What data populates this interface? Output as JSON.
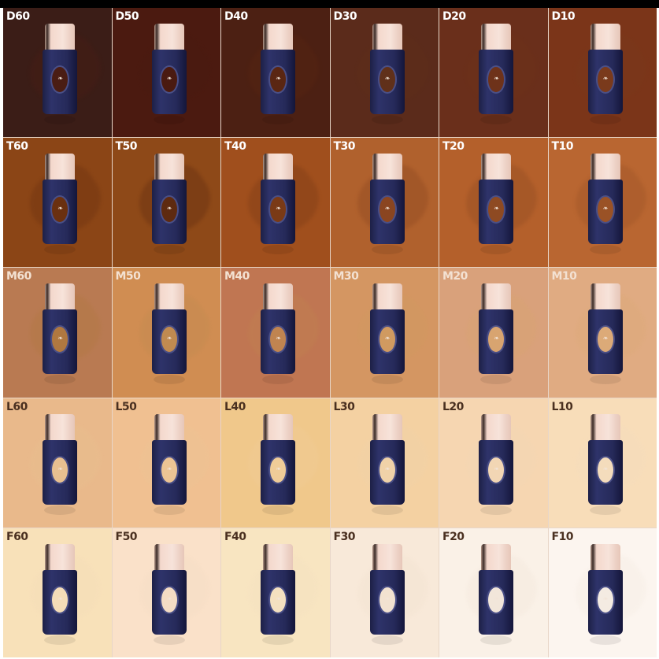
{
  "shades": [
    {
      "name": "D60",
      "bg": "#3b1d17",
      "ink": "#ffffff",
      "product": "#4a1d14"
    },
    {
      "name": "D50",
      "bg": "#4b1a10",
      "ink": "#ffffff",
      "product": "#4a1a10"
    },
    {
      "name": "D40",
      "bg": "#4c2013",
      "ink": "#ffffff",
      "product": "#5a2612"
    },
    {
      "name": "D30",
      "bg": "#5b2b1b",
      "ink": "#ffffff",
      "product": "#60301a"
    },
    {
      "name": "D20",
      "bg": "#6a2f1b",
      "ink": "#ffffff",
      "product": "#6e321a"
    },
    {
      "name": "D10",
      "bg": "#7b3519",
      "ink": "#ffffff",
      "product": "#7a3a1c"
    },
    {
      "name": "T60",
      "bg": "#8b4516",
      "ink": "#ffffff",
      "product": "#6a3010"
    },
    {
      "name": "T50",
      "bg": "#8e4918",
      "ink": "#ffffff",
      "product": "#5e2a10"
    },
    {
      "name": "T40",
      "bg": "#a04f1d",
      "ink": "#ffffff",
      "product": "#7a3a16"
    },
    {
      "name": "T30",
      "bg": "#b0612d",
      "ink": "#ffffff",
      "product": "#8a4520"
    },
    {
      "name": "T20",
      "bg": "#b4602b",
      "ink": "#ffffff",
      "product": "#8e4a22"
    },
    {
      "name": "T10",
      "bg": "#b96631",
      "ink": "#ffffff",
      "product": "#9a5226"
    },
    {
      "name": "M60",
      "bg": "#b97a52",
      "ink": "#f3e1d2",
      "product": "#b07840"
    },
    {
      "name": "M50",
      "bg": "#d08d52",
      "ink": "#f3e1d2",
      "product": "#c08a50"
    },
    {
      "name": "M40",
      "bg": "#c07652",
      "ink": "#f3e1d2",
      "product": "#c08450"
    },
    {
      "name": "M30",
      "bg": "#d49662",
      "ink": "#f3e1d2",
      "product": "#d09a60"
    },
    {
      "name": "M20",
      "bg": "#d9a17b",
      "ink": "#f3e1d2",
      "product": "#d8a470"
    },
    {
      "name": "M10",
      "bg": "#e0ab82",
      "ink": "#f3e1d2",
      "product": "#dcaa78"
    },
    {
      "name": "L60",
      "bg": "#e9b98b",
      "ink": "#4a3020",
      "product": "#e8c090"
    },
    {
      "name": "L50",
      "bg": "#f0c091",
      "ink": "#4a3020",
      "product": "#ecc494"
    },
    {
      "name": "L40",
      "bg": "#f0c88b",
      "ink": "#4a3020",
      "product": "#f0cc98"
    },
    {
      "name": "L30",
      "bg": "#f4d1a2",
      "ink": "#4a3020",
      "product": "#f0d2a8"
    },
    {
      "name": "L20",
      "bg": "#f6d6b1",
      "ink": "#4a3020",
      "product": "#f2d6b4"
    },
    {
      "name": "L10",
      "bg": "#f8ddb9",
      "ink": "#4a3020",
      "product": "#f4dcbc"
    },
    {
      "name": "F60",
      "bg": "#f8e1b9",
      "ink": "#4a3020",
      "product": "#f4dcb8"
    },
    {
      "name": "F50",
      "bg": "#fae1c9",
      "ink": "#4a3020",
      "product": "#f4dcc4"
    },
    {
      "name": "F40",
      "bg": "#f8e5c1",
      "ink": "#4a3020",
      "product": "#f4e0c0"
    },
    {
      "name": "F30",
      "bg": "#f8e9d9",
      "ink": "#4a3020",
      "product": "#f2e2d0"
    },
    {
      "name": "F20",
      "bg": "#faf1e7",
      "ink": "#4a3020",
      "product": "#f2e6da"
    },
    {
      "name": "F10",
      "bg": "#fcf5ef",
      "ink": "#4a3020",
      "product": "#f4ebe2"
    }
  ]
}
